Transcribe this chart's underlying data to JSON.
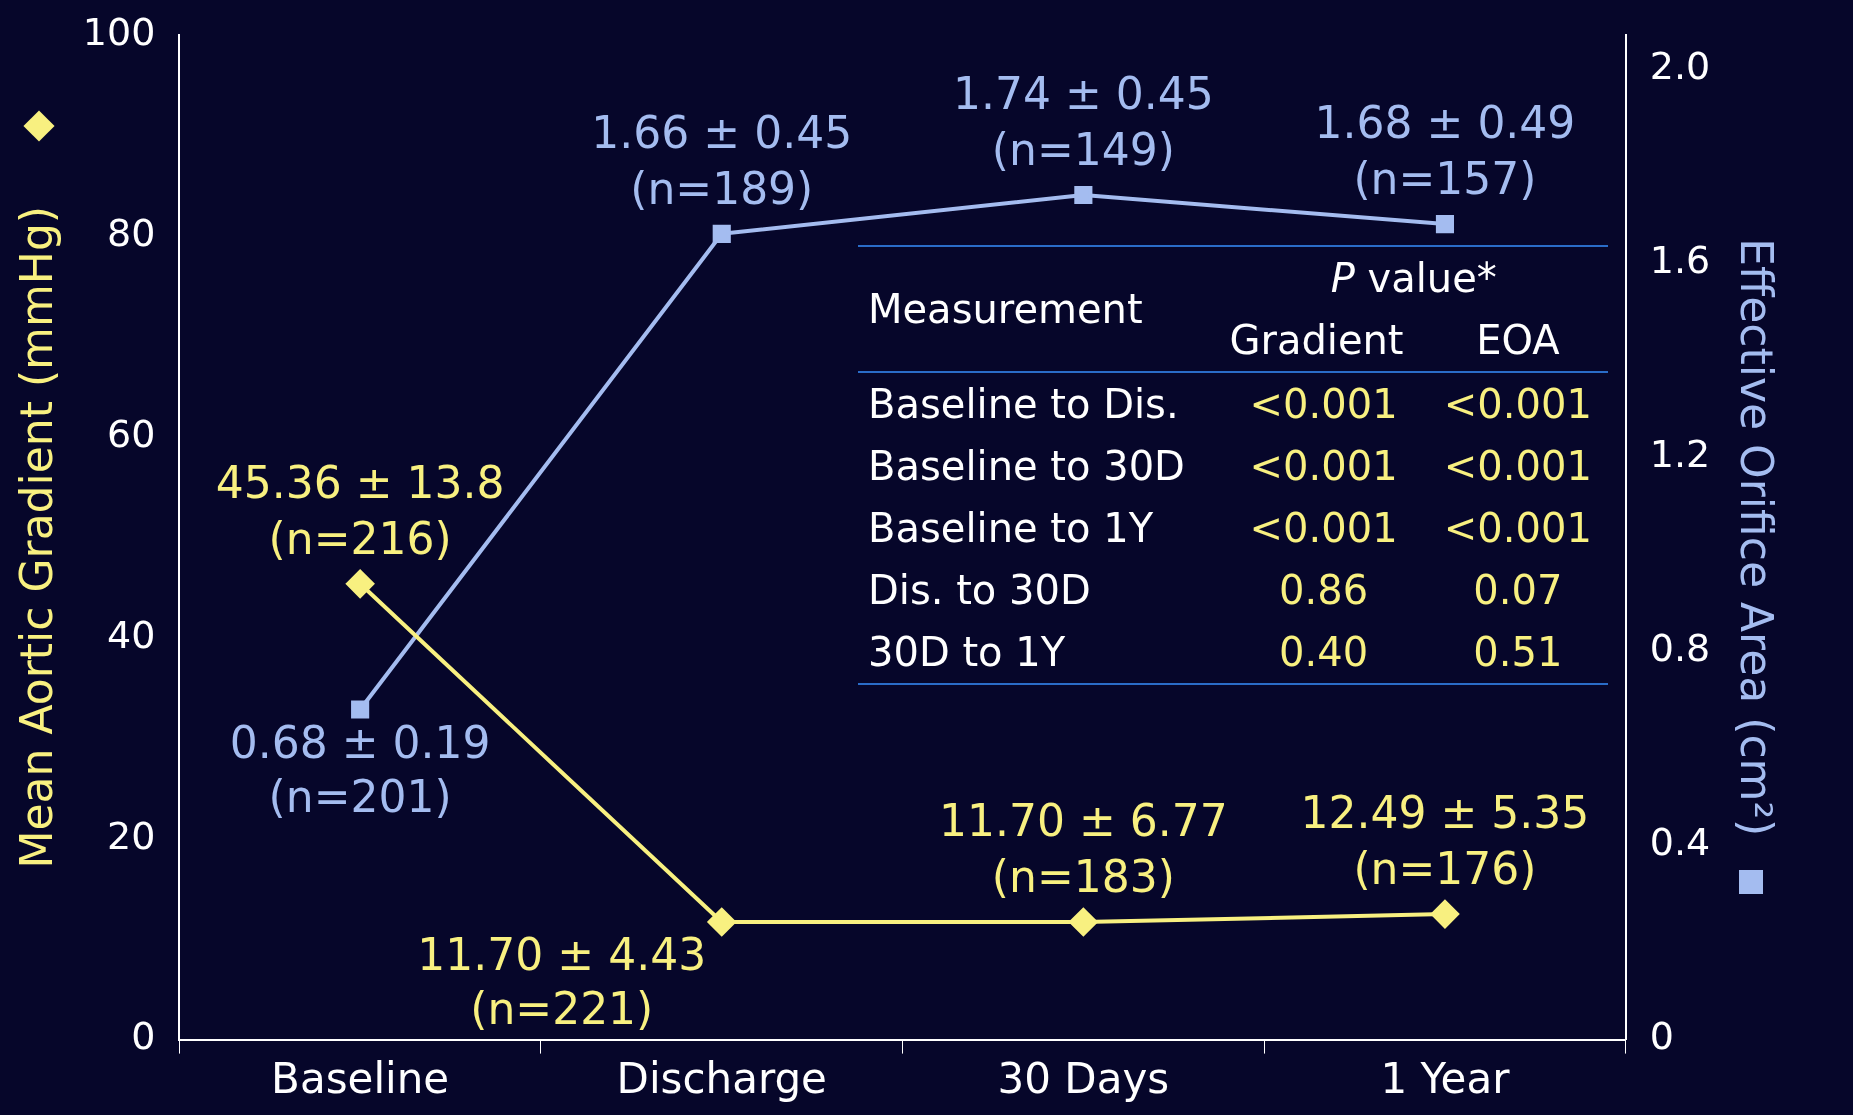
{
  "chart_data": {
    "type": "line",
    "categories": [
      "Baseline",
      "Discharge",
      "30 Days",
      "1 Year"
    ],
    "ylabel": "Mean Aortic Gradient (mmHg)",
    "y2label": "Effective Orifice Area (cm²)",
    "ylim": [
      0,
      100
    ],
    "yticks": [
      0,
      20,
      40,
      60,
      80,
      100
    ],
    "y2lim": [
      0,
      2.07
    ],
    "y2ticks": [
      0,
      0.4,
      0.8,
      1.2,
      1.6,
      {
        "value": 2,
        "label": "2.0"
      }
    ],
    "grid": false,
    "legend": false,
    "line_style": "solid",
    "series": [
      {
        "color": "#f8f080",
        "marker": "diamond",
        "values": [
          45.36,
          11.7,
          11.7,
          12.49
        ],
        "value_labels": [
          "45.36 ± 13.8\n(n=216)",
          "11.70 ± 4.43\n(n=221)",
          "11.70 ± 6.77\n(n=183)",
          "12.49 ± 5.35\n(n=176)"
        ]
      },
      {
        "color": "#a4bcf0",
        "marker": "square",
        "axis": "y2",
        "values": [
          0.68,
          1.66,
          1.74,
          1.68
        ],
        "value_labels": [
          "0.68 ± 0.19\n(n=201)",
          "1.66 ± 0.45\n(n=189)",
          "1.74 ± 0.45\n(n=149)",
          "1.68 ± 0.49\n(n=157)"
        ]
      }
    ],
    "annotations": [
      "Measurement",
      "P value*",
      "Gradient",
      "EOA",
      "Baseline to Dis.",
      "<0.001",
      "<0.001",
      "Baseline to 30D",
      "<0.001",
      "<0.001",
      "Baseline to 1Y",
      "<0.001",
      "<0.001",
      "Dis. to 30D",
      "0.86",
      "0.07",
      "30D to 1Y",
      "0.40",
      "0.51"
    ]
  }
}
